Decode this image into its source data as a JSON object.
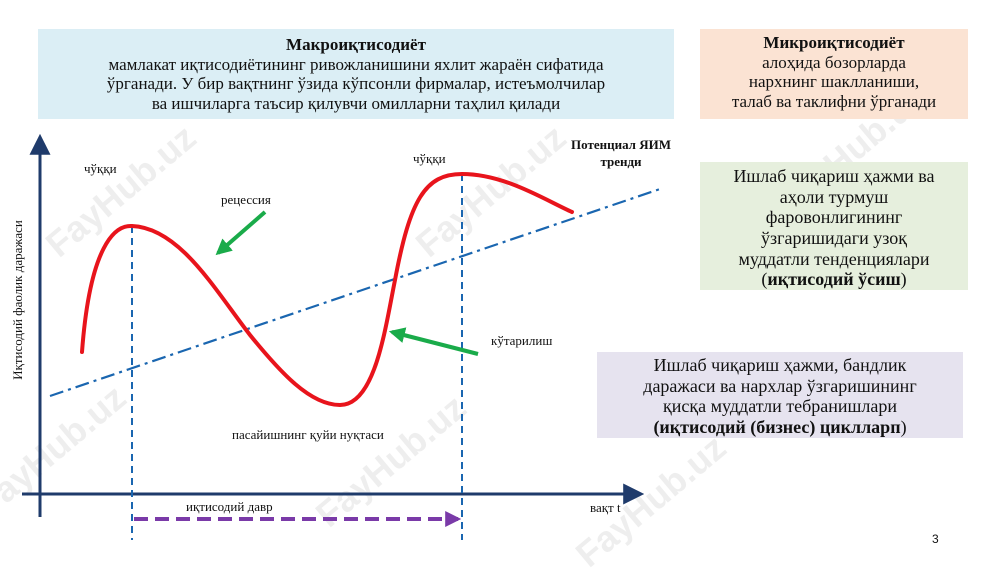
{
  "macro": {
    "title": "Макроиқтисодиёт",
    "line1": "мамлакат иқтисодиётининг ривожланишини яхлит жараён сифатида",
    "line2": "ўрганади. У бир вақтнинг ўзида кўпсонли фирмалар, истеъмолчилар",
    "line3": "ва ишчиларга таъсир қилувчи омилларни таҳлил қилади"
  },
  "micro": {
    "title": "Микроиқтисодиёт",
    "line1": "алоҳида бозорларда",
    "line2": "нархнинг шаклланиши,",
    "line3": "талаб ва таклифни ўрганади"
  },
  "growth": {
    "line1": "Ишлаб чиқариш ҳажми ва",
    "line2": "аҳоли турмуш",
    "line3": "фаровонлигининг",
    "line4": "ўзгаришидаги узоқ",
    "line5": "муддатли тенденциялари",
    "open": "(",
    "bold": "иқтисодий ўсиш",
    "close": ")"
  },
  "cycle": {
    "line1": "Ишлаб чиқариш ҳажми, бандлик",
    "line2": "даражаси ва нархлар ўзгаришининг",
    "line3": "қисқа муддатли тебранишлари",
    "bold": "(иқтисодий (бизнес) циклларп",
    "close": ")"
  },
  "labels": {
    "y_axis": "Иқтисодий фаолик даражаси",
    "x_axis": "вақт t",
    "peak_left": "чўққи",
    "peak_right": "чўққи",
    "recession": "рецессия",
    "recovery": "кўтарилиш",
    "trough": "пасайишнинг қуйи нуқтаси",
    "cycle_span": "иқтисодий давр",
    "trend_line1": "Потенциал ЯИМ",
    "trend_line2": "тренди"
  },
  "colors": {
    "curve": "#e8141c",
    "trend": "#1a66b0",
    "axes": "#1f3b6b",
    "arrow": "#1aab4a",
    "span": "#7a3aa8"
  },
  "watermark": "FayHub.uz",
  "page_number": "3"
}
